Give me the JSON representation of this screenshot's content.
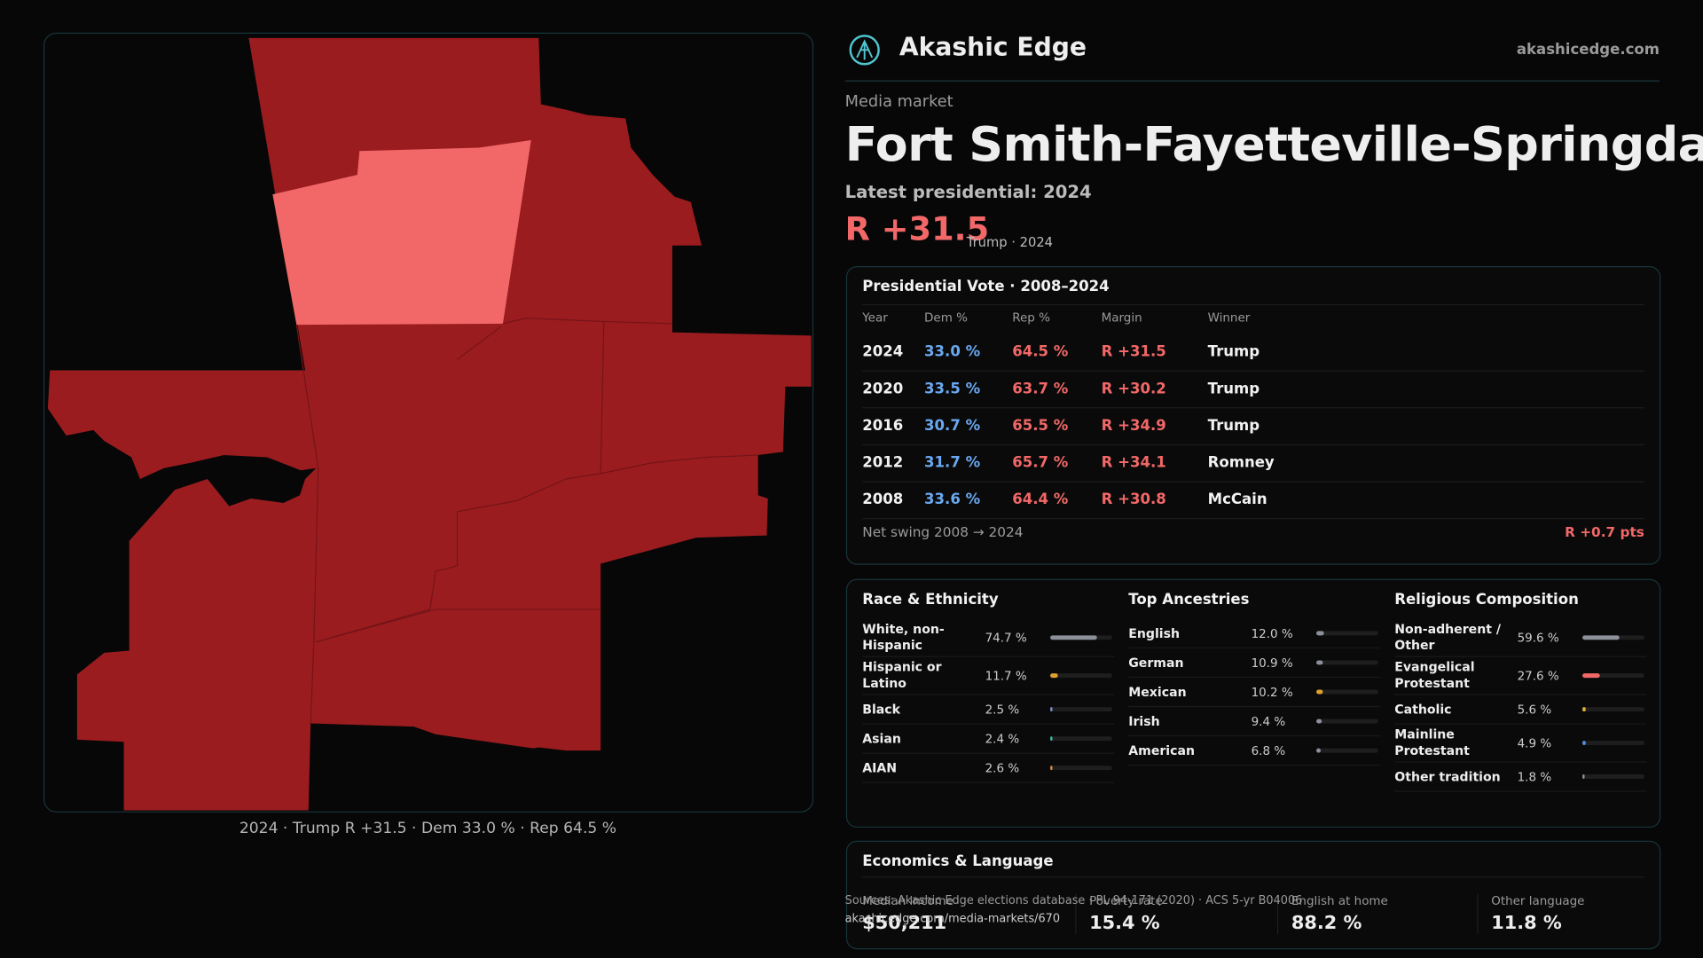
{
  "header": {
    "brand": "Akashic Edge",
    "domain": "akashicedge.com"
  },
  "market": {
    "label": "Media market",
    "title": "Fort Smith-Fayetteville-Springdale-Rogers",
    "latest": "Latest presidential: 2024",
    "margin": "R +31.5",
    "margin_note": "Trump · 2024"
  },
  "vote_table": {
    "title": "Presidential Vote · 2008–2024",
    "columns": [
      "Year",
      "Dem %",
      "Rep %",
      "Margin",
      "Winner"
    ],
    "rows": [
      [
        "2024",
        "33.0 %",
        "64.5 %",
        "R +31.5",
        "Trump"
      ],
      [
        "2020",
        "33.5 %",
        "63.7 %",
        "R +30.2",
        "Trump"
      ],
      [
        "2016",
        "30.7 %",
        "65.5 %",
        "R +34.9",
        "Trump"
      ],
      [
        "2012",
        "31.7 %",
        "65.7 %",
        "R +34.1",
        "Romney"
      ],
      [
        "2008",
        "33.6 %",
        "64.4 %",
        "R +30.8",
        "McCain"
      ]
    ],
    "net_swing_label": "Net swing 2008 → 2024",
    "net_swing": "R +0.7 pts"
  },
  "race": {
    "title": "Race & Ethnicity",
    "items": [
      {
        "name": "White, non-Hispanic",
        "value": 74.7,
        "label": "74.7 %",
        "color": "#8b9099"
      },
      {
        "name": "Hispanic or Latino",
        "value": 11.7,
        "label": "11.7 %",
        "color": "#e0a030"
      },
      {
        "name": "Black",
        "value": 2.5,
        "label": "2.5 %",
        "color": "#7a8fd0"
      },
      {
        "name": "Asian",
        "value": 2.4,
        "label": "2.4 %",
        "color": "#3fb8a0"
      },
      {
        "name": "AIAN",
        "value": 2.6,
        "label": "2.6 %",
        "color": "#d08a40"
      }
    ]
  },
  "ancestry": {
    "title": "Top Ancestries",
    "items": [
      {
        "name": "English",
        "value": 12.0,
        "label": "12.0 %",
        "color": "#8b9099"
      },
      {
        "name": "German",
        "value": 10.9,
        "label": "10.9 %",
        "color": "#8b9099"
      },
      {
        "name": "Mexican",
        "value": 10.2,
        "label": "10.2 %",
        "color": "#e0a030"
      },
      {
        "name": "Irish",
        "value": 9.4,
        "label": "9.4 %",
        "color": "#8b9099"
      },
      {
        "name": "American",
        "value": 6.8,
        "label": "6.8 %",
        "color": "#8b9099"
      }
    ]
  },
  "religion": {
    "title": "Religious Composition",
    "items": [
      {
        "name": "Non-adherent / Other",
        "value": 59.6,
        "label": "59.6 %",
        "color": "#8b9099"
      },
      {
        "name": "Evangelical Protestant",
        "value": 27.6,
        "label": "27.6 %",
        "color": "#f26868"
      },
      {
        "name": "Catholic",
        "value": 5.6,
        "label": "5.6 %",
        "color": "#e0b030"
      },
      {
        "name": "Mainline Protestant",
        "value": 4.9,
        "label": "4.9 %",
        "color": "#5a8ae0"
      },
      {
        "name": "Other tradition",
        "value": 1.8,
        "label": "1.8 %",
        "color": "#8b9099"
      }
    ]
  },
  "economics": {
    "title": "Economics & Language",
    "items": [
      {
        "label": "Median income",
        "value": "$50,211"
      },
      {
        "label": "Poverty rate",
        "value": "15.4 %"
      },
      {
        "label": "English at home",
        "value": "88.2 %"
      },
      {
        "label": "Other language",
        "value": "11.8 %"
      }
    ]
  },
  "map": {
    "caption": "2024 · Trump R +31.5 · Dem 33.0 % · Rep 64.5 %"
  },
  "sources": {
    "text": "Sources: Akashic Edge elections database · PL 94-171 (2020) · ACS 5-yr B04006",
    "url": "akashicedge.com/media-markets/670"
  }
}
